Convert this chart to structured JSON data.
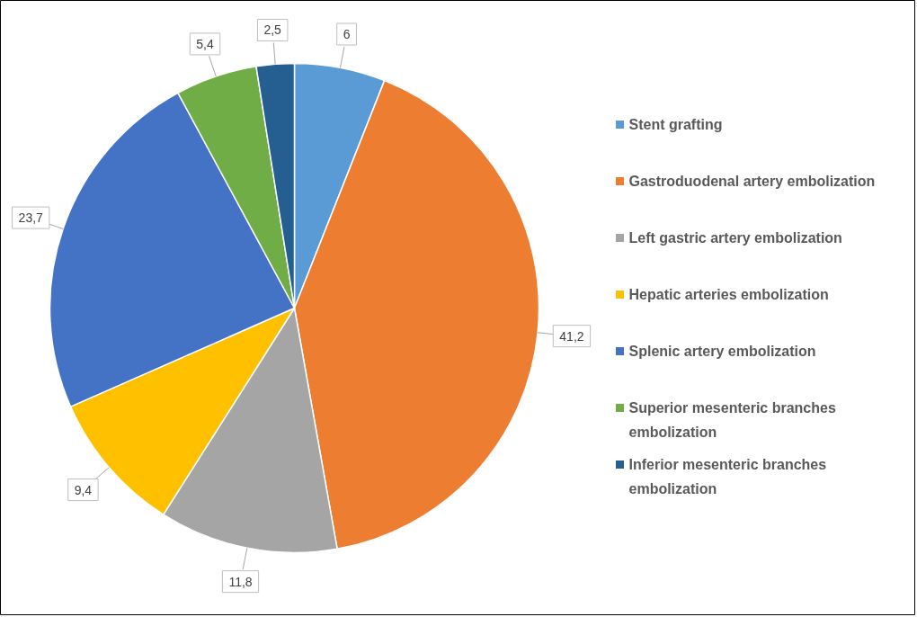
{
  "chart_data": {
    "type": "pie",
    "categories": [
      "Stent grafting",
      "Gastroduodenal artery embolization",
      "Left gastric artery embolization",
      "Hepatic arteries embolization",
      "Splenic artery embolization",
      "Superior mesenteric branches embolization",
      "Inferior mesenteric branches embolization"
    ],
    "values": [
      6,
      41.2,
      11.8,
      9.4,
      23.7,
      5.4,
      2.5
    ],
    "value_labels": [
      "6",
      "41,2",
      "11,8",
      "9,4",
      "23,7",
      "5,4",
      "2,5"
    ],
    "colors": [
      "#5b9bd5",
      "#ed7d31",
      "#a5a5a5",
      "#ffc000",
      "#4472c4",
      "#70ad47",
      "#255e91"
    ],
    "legend": "right"
  }
}
